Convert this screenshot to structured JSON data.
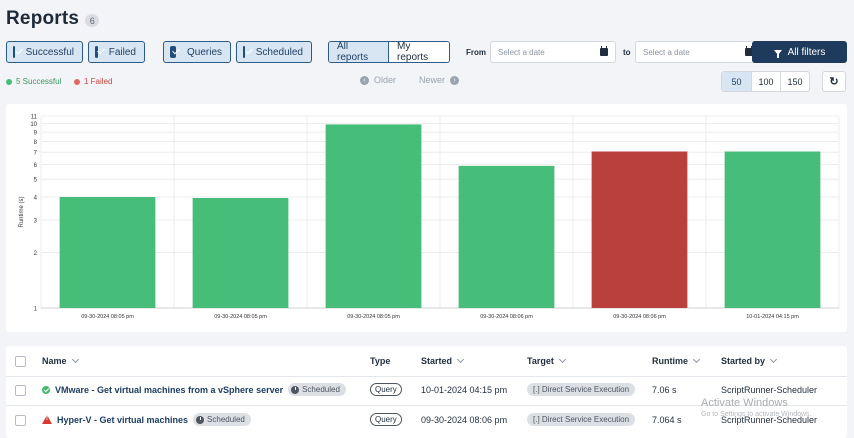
{
  "header": {
    "title": "Reports",
    "count": "6"
  },
  "filters": {
    "successful": "Successful",
    "failed": "Failed",
    "queries": "Queries",
    "scheduled": "Scheduled",
    "all_reports": "All reports",
    "my_reports": "My reports",
    "from_label": "From",
    "to_label": "to",
    "from_placeholder": "Select a date",
    "to_placeholder": "Select a date",
    "all_filters": "All filters"
  },
  "status": {
    "successful": "5 Successful",
    "failed": "1 Failed"
  },
  "pager": {
    "older": "Older",
    "newer": "Newer"
  },
  "page_sizes": [
    "50",
    "100",
    "150"
  ],
  "colors": {
    "success": "#46be79",
    "fail": "#b9403b",
    "primary": "#1e3a5c"
  },
  "chart_data": {
    "type": "bar",
    "ylabel": "Runtime (s)",
    "yscale": "log",
    "ylim": [
      1,
      11
    ],
    "yticks": [
      1,
      2,
      3,
      4,
      5,
      6,
      7,
      8,
      9,
      10,
      11
    ],
    "categories": [
      "09-30-2024 08:05 pm",
      "09-30-2024 08:05 pm",
      "09-30-2024 08:05 pm",
      "09-30-2024 08:06 pm",
      "09-30-2024 08:06 pm",
      "10-01-2024 04:15 pm"
    ],
    "values": [
      4.0,
      3.95,
      9.9,
      5.9,
      7.06,
      7.06
    ],
    "status": [
      "success",
      "success",
      "success",
      "success",
      "fail",
      "success"
    ]
  },
  "table": {
    "headers": {
      "name": "Name",
      "type": "Type",
      "started": "Started",
      "target": "Target",
      "runtime": "Runtime",
      "started_by": "Started by"
    },
    "rows": [
      {
        "status": "success",
        "name": "VMware - Get virtual machines from a vSphere server",
        "tag": "Scheduled",
        "type": "Query",
        "started": "10-01-2024 04:15 pm",
        "target": "[.] Direct Service Execution",
        "runtime": "7.06 s",
        "started_by": "ScriptRunner-Scheduler"
      },
      {
        "status": "fail",
        "name": "Hyper-V - Get virtual machines",
        "tag": "Scheduled",
        "type": "Query",
        "started": "09-30-2024 08:06 pm",
        "target": "[.] Direct Service Execution",
        "runtime": "7.064 s",
        "started_by": "ScriptRunner-Scheduler"
      }
    ]
  },
  "watermark": {
    "line1": "Activate Windows",
    "line2": "Go to Settings to activate Windows."
  }
}
